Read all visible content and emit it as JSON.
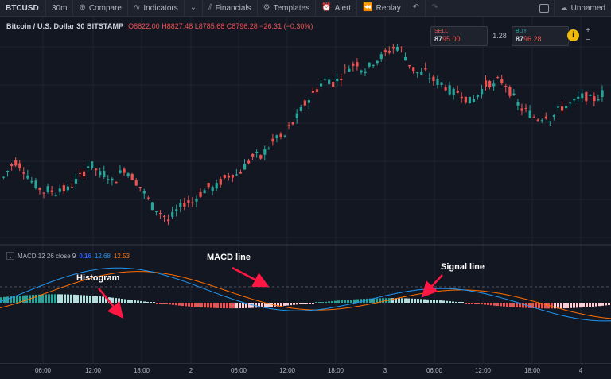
{
  "toolbar": {
    "symbol": "BTCUSD",
    "interval": "30m",
    "compare": "Compare",
    "indicators": "Indicators",
    "financials": "Financials",
    "templates": "Templates",
    "alert": "Alert",
    "replay": "Replay",
    "layout_name": "Unnamed"
  },
  "legend": {
    "title": "Bitcoin / U.S. Dollar  30  BITSTAMP",
    "ohlc": "O8822.00  H8827.48  L8785.68  C8796.28  −26.31 (−0.30%)"
  },
  "trade": {
    "sell_label": "SELL",
    "sell_price_main": "87",
    "sell_price_tail": "95.00",
    "spread": "1.28",
    "buy_label": "BUY",
    "buy_price_main": "87",
    "buy_price_tail": "96.28",
    "info": "i",
    "plus": "+",
    "minus": "−"
  },
  "macd": {
    "name": "MACD 12 26 close 9",
    "macd_value": "0.16",
    "signal_value": "12.68",
    "hist_value": "12.53"
  },
  "annotations": {
    "histogram": "Histogram",
    "macd_line": "MACD line",
    "signal_line": "Signal line"
  },
  "time_axis": [
    "06:00",
    "12:00",
    "18:00",
    "2",
    "06:00",
    "12:00",
    "18:00",
    "3",
    "06:00",
    "12:00",
    "18:00",
    "4"
  ],
  "colors": {
    "up": "#26a69a",
    "down": "#ef5350",
    "macd_line": "#2196f3",
    "signal_line": "#ff6d00",
    "arrow": "#ff1744"
  },
  "chart_data": {
    "type": "candlestick",
    "price_path": [
      8580,
      8620,
      8650,
      8630,
      8600,
      8560,
      8540,
      8520,
      8530,
      8510,
      8540,
      8520,
      8550,
      8570,
      8600,
      8640,
      8620,
      8590,
      8600,
      8560,
      8580,
      8620,
      8600,
      8570,
      8540,
      8500,
      8460,
      8440,
      8420,
      8390,
      8430,
      8450,
      8480,
      8470,
      8500,
      8520,
      8540,
      8530,
      8560,
      8580,
      8600,
      8590,
      8620,
      8650,
      8680,
      8660,
      8700,
      8720,
      8760,
      8740,
      8790,
      8820,
      8860,
      8900,
      8930,
      8960,
      8990,
      9000,
      8980,
      9010,
      9040,
      9060,
      9070,
      9040,
      9050,
      9080,
      9090,
      9110,
      9130,
      9140,
      9120,
      9070,
      9040,
      9020,
      9030,
      9000,
      8990,
      8980,
      8960,
      8940,
      8950,
      8920,
      8900,
      8930,
      8960,
      8990,
      8970,
      9000,
      8980,
      8940,
      8900,
      8870,
      8860,
      8840,
      8830,
      8850,
      8830,
      8860,
      8880,
      8890,
      8900,
      8920,
      8930,
      8910,
      8920,
      8940
    ],
    "macd_series": [],
    "note_free": true
  }
}
